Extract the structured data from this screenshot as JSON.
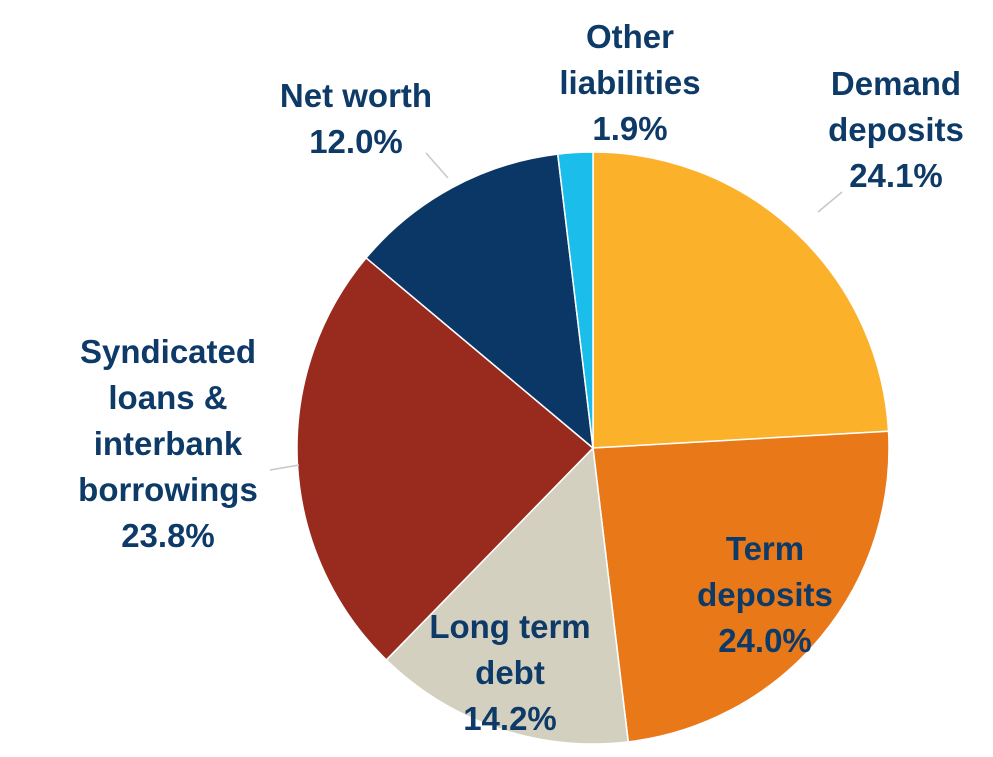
{
  "chart_data": {
    "type": "pie",
    "title": "",
    "start_angle_deg": 0,
    "direction": "clockwise",
    "slices": [
      {
        "name": "Demand deposits",
        "value": 24.1,
        "label_lines": [
          "Demand",
          "deposits",
          "24.1%"
        ],
        "color": "#FBB12A",
        "label_color": "#0E3A68"
      },
      {
        "name": "Term deposits",
        "value": 24.0,
        "label_lines": [
          "Term",
          "deposits",
          "24.0%"
        ],
        "color": "#E87818",
        "label_color": "#0E3A68"
      },
      {
        "name": "Long term debt",
        "value": 14.2,
        "label_lines": [
          "Long term",
          "debt",
          "14.2%"
        ],
        "color": "#D4D0C0",
        "label_color": "#0E3A68"
      },
      {
        "name": "Syndicated loans & interbank borrowings",
        "value": 23.8,
        "label_lines": [
          "Syndicated",
          "loans &",
          "interbank",
          "borrowings",
          "23.8%"
        ],
        "color": "#992A1E",
        "label_color": "#0E3A68"
      },
      {
        "name": "Net worth",
        "value": 12.0,
        "label_lines": [
          "Net worth",
          "12.0%"
        ],
        "color": "#0B3766",
        "label_color": "#0E3A68"
      },
      {
        "name": "Other liabilities",
        "value": 1.9,
        "label_lines": [
          "Other",
          "liabilities",
          "1.9%"
        ],
        "color": "#1BBDEB",
        "label_color": "#0E3A68"
      }
    ]
  }
}
